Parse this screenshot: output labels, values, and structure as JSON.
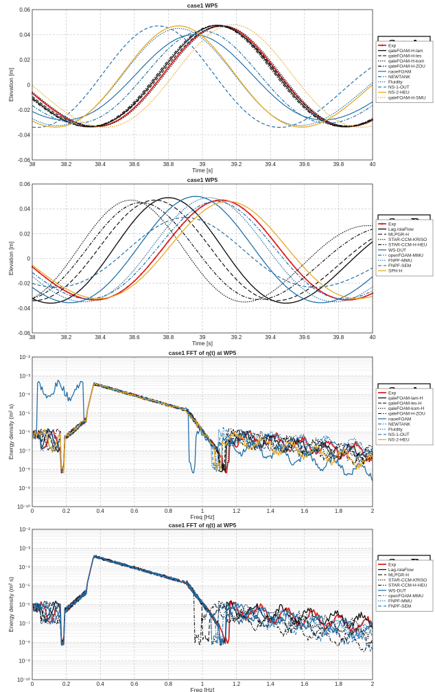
{
  "colors": {
    "red": "#e02020",
    "black": "#111111",
    "blue": "#1f6fa8",
    "gold": "#e8a820",
    "grid": "#bbbbbb"
  },
  "chart_data": [
    {
      "type": "line",
      "title": "case1 WP5",
      "xlabel": "Time [s]",
      "ylabel": "Elevation [m]",
      "xlim": [
        38,
        40
      ],
      "ylim": [
        -0.06,
        0.06
      ],
      "xticks": [
        38,
        38.2,
        38.4,
        38.6,
        38.8,
        39,
        39.2,
        39.4,
        39.6,
        39.8,
        40
      ],
      "yticks": [
        -0.06,
        -0.04,
        -0.02,
        0,
        0.02,
        0.04,
        0.06
      ],
      "log": false,
      "grid": true,
      "legend": "right",
      "set_label": "Set A",
      "series": [
        {
          "name": "Exp",
          "color": "#e02020",
          "dash": "none",
          "marker": true,
          "width": 1.8,
          "amp": 0.047,
          "t0": 39.11,
          "T": 1.56,
          "off": 0.002
        },
        {
          "name": "qaleFOAM-H-lam",
          "color": "#111111",
          "dash": "none",
          "width": 1.4,
          "amp": 0.0475,
          "t0": 39.09,
          "T": 1.58,
          "off": 0.002
        },
        {
          "name": "qaleFOAM-H-les",
          "color": "#111111",
          "dash": "5,2",
          "width": 1.2,
          "amp": 0.0465,
          "t0": 39.1,
          "T": 1.58,
          "off": 0.002
        },
        {
          "name": "qaleFOAM-H-kom",
          "color": "#111111",
          "dash": "1.5,1.5",
          "width": 1.2,
          "amp": 0.047,
          "t0": 39.12,
          "T": 1.56,
          "off": 0.002
        },
        {
          "name": "qaleFOAM-H-ZOU",
          "color": "#111111",
          "dash": "5,2,1.5,2",
          "width": 1.2,
          "amp": 0.0475,
          "t0": 39.08,
          "T": 1.58,
          "off": 0.002
        },
        {
          "name": "naoeFOAM",
          "color": "#1f6fa8",
          "dash": "none",
          "width": 1.2,
          "amp": 0.04,
          "t0": 38.95,
          "T": 1.6,
          "off": 0.0
        },
        {
          "name": "NEWTANK",
          "color": "#1f6fa8",
          "dash": "5,2,1.5,2",
          "width": 1.2,
          "amp": 0.043,
          "t0": 39.0,
          "T": 1.55,
          "off": 0.0
        },
        {
          "name": "Fluidity",
          "color": "#1f6fa8",
          "dash": "1.5,1.5",
          "width": 1.2,
          "amp": 0.045,
          "t0": 38.86,
          "T": 1.5,
          "off": 0.008
        },
        {
          "name": "NS-1-OUT",
          "color": "#1f6fa8",
          "dash": "5,3",
          "width": 1.2,
          "amp": 0.047,
          "t0": 38.74,
          "T": 1.5,
          "off": 0.002
        },
        {
          "name": "NS-2-HEU",
          "color": "#e8a820",
          "dash": "none",
          "width": 1.3,
          "amp": 0.047,
          "t0": 38.86,
          "T": 1.52,
          "off": 0.002
        },
        {
          "name": "qaleFOAM-H-SMU",
          "color": "#e8a820",
          "dash": "1.5,1.5",
          "width": 1.2,
          "amp": 0.048,
          "t0": 39.18,
          "T": 1.58,
          "off": 0.002
        }
      ]
    },
    {
      "type": "line",
      "title": "case1 WP5",
      "xlabel": "Time [s]",
      "ylabel": "Elevation [m]",
      "xlim": [
        38,
        40
      ],
      "ylim": [
        -0.06,
        0.06
      ],
      "xticks": [
        38,
        38.2,
        38.4,
        38.6,
        38.8,
        39,
        39.2,
        39.4,
        39.6,
        39.8,
        40
      ],
      "yticks": [
        -0.06,
        -0.04,
        -0.02,
        0,
        0.02,
        0.04,
        0.06
      ],
      "log": false,
      "grid": true,
      "legend": "right",
      "set_label": "Set B",
      "series": [
        {
          "name": "Exp",
          "color": "#e02020",
          "dash": "none",
          "marker": true,
          "width": 1.8,
          "amp": 0.047,
          "t0": 39.11,
          "T": 1.56,
          "off": 0.002
        },
        {
          "name": "Lag./olaFlow",
          "color": "#111111",
          "dash": "none",
          "width": 1.4,
          "amp": 0.049,
          "t0": 38.8,
          "T": 1.45,
          "off": 0.004
        },
        {
          "name": "MLPGR-H",
          "color": "#111111",
          "dash": "6,3",
          "width": 1.2,
          "amp": 0.047,
          "t0": 38.72,
          "T": 1.5,
          "off": 0.002
        },
        {
          "name": "STAR-CCM-KRISO",
          "color": "#111111",
          "dash": "1.5,1.5",
          "width": 1.2,
          "amp": 0.047,
          "t0": 38.58,
          "T": 1.4,
          "off": 0.0
        },
        {
          "name": "STAR-CCM-H-HEU",
          "color": "#111111",
          "dash": "5,2,1.5,2",
          "width": 1.2,
          "amp": 0.045,
          "t0": 38.64,
          "T": 1.45,
          "off": 0.0
        },
        {
          "name": "WS-DUT",
          "color": "#1f6fa8",
          "dash": "none",
          "width": 1.3,
          "amp": 0.05,
          "t0": 38.96,
          "T": 1.55,
          "off": 0.004
        },
        {
          "name": "openFOAM-MMU",
          "color": "#1f6fa8",
          "dash": "5,2,1.5,2",
          "width": 1.2,
          "amp": 0.046,
          "t0": 39.08,
          "T": 1.58,
          "off": 0.002
        },
        {
          "name": "FNPF-MMU",
          "color": "#1f6fa8",
          "dash": "1.5,1.5",
          "width": 1.2,
          "amp": 0.049,
          "t0": 39.04,
          "T": 1.55,
          "off": 0.004
        },
        {
          "name": "FNPF-SEM",
          "color": "#1f6fa8",
          "dash": "5,3",
          "width": 1.2,
          "amp": 0.033,
          "t0": 38.9,
          "T": 1.6,
          "off": 0.0
        },
        {
          "name": "SPH-H",
          "color": "#e8a820",
          "dash": "none",
          "width": 1.3,
          "amp": 0.046,
          "t0": 39.15,
          "T": 1.6,
          "off": 0.002
        }
      ]
    },
    {
      "type": "line",
      "title": "case1 FFT of η(t) at WP5",
      "xlabel": "Freq [Hz]",
      "ylabel": "Energy density (m² s)",
      "xlim": [
        0,
        2
      ],
      "ylim": [
        1e-10,
        0.01
      ],
      "xticks": [
        0,
        0.2,
        0.4,
        0.6,
        0.8,
        1,
        1.2,
        1.4,
        1.6,
        1.8,
        2
      ],
      "yticks": [
        "10⁻²",
        "10⁻³",
        "10⁻⁴",
        "10⁻⁵",
        "10⁻⁶",
        "10⁻⁷",
        "10⁻⁸",
        "10⁻⁹",
        "10⁻¹⁰"
      ],
      "log": true,
      "grid": true,
      "legend": "right",
      "set_label": "Set A",
      "series": [
        {
          "name": "Exp",
          "color": "#e02020",
          "dash": "none",
          "width": 1.8,
          "seed": 1,
          "dip": 1.12,
          "tail": -7.2
        },
        {
          "name": "qaleFOAM-lam-H",
          "color": "#111111",
          "dash": "none",
          "width": 1.3,
          "seed": 2,
          "dip": 1.1,
          "tail": -7.3
        },
        {
          "name": "qaleFOAM-les-H",
          "color": "#111111",
          "dash": "5,2",
          "width": 1.1,
          "seed": 3,
          "dip": 1.09,
          "tail": -7.3
        },
        {
          "name": "qaleFOAM-kom-H",
          "color": "#111111",
          "dash": "1.5,1.5",
          "width": 1.1,
          "seed": 4,
          "dip": 1.11,
          "tail": -7.2
        },
        {
          "name": "qaleFOAM-H-ZOU",
          "color": "#111111",
          "dash": "5,2,1.5,2",
          "width": 1.1,
          "seed": 5,
          "dip": 1.1,
          "tail": -7.4
        },
        {
          "name": "naoeFOAM",
          "color": "#1f6fa8",
          "dash": "none",
          "width": 1.3,
          "seed": 6,
          "dip": 0.92,
          "tail": -7.8,
          "low": -4.0
        },
        {
          "name": "NEWTANK",
          "color": "#1f6fa8",
          "dash": "5,2,1.5,2",
          "width": 1.1,
          "seed": 7,
          "dip": 1.08,
          "tail": -7.0
        },
        {
          "name": "Fluidity",
          "color": "#1f6fa8",
          "dash": "1.5,1.5",
          "width": 1.1,
          "seed": 8,
          "dip": 1.05,
          "tail": -6.9
        },
        {
          "name": "NS-1-OUT",
          "color": "#1f6fa8",
          "dash": "5,3",
          "width": 1.1,
          "seed": 9,
          "dip": 1.06,
          "tail": -7.2
        },
        {
          "name": "NS-2-HEU",
          "color": "#e8a820",
          "dash": "none",
          "width": 1.3,
          "seed": 10,
          "dip": 1.07,
          "tail": -7.6
        }
      ]
    },
    {
      "type": "line",
      "title": "case1 FFT of η(t) at WP5",
      "xlabel": "Freq [Hz]",
      "ylabel": "Energy density (m² s)",
      "xlim": [
        0,
        2
      ],
      "ylim": [
        1e-10,
        0.01
      ],
      "xticks": [
        0,
        0.2,
        0.4,
        0.6,
        0.8,
        1,
        1.2,
        1.4,
        1.6,
        1.8,
        2
      ],
      "yticks": [
        "10⁻²",
        "10⁻³",
        "10⁻⁴",
        "10⁻⁵",
        "10⁻⁶",
        "10⁻⁷",
        "10⁻⁸",
        "10⁻⁹",
        "10⁻¹⁰"
      ],
      "log": true,
      "grid": true,
      "legend": "right",
      "set_label": "Set B",
      "series": [
        {
          "name": "Exp",
          "color": "#e02020",
          "dash": "none",
          "width": 1.8,
          "seed": 11,
          "dip": 1.12,
          "tail": -7.2
        },
        {
          "name": "Lag./olaFlow",
          "color": "#111111",
          "dash": "none",
          "width": 1.3,
          "seed": 12,
          "dip": 1.1,
          "tail": -7.0
        },
        {
          "name": "MLPGR-H",
          "color": "#111111",
          "dash": "6,3",
          "width": 1.1,
          "seed": 13,
          "dip": 1.0,
          "tail": -7.6
        },
        {
          "name": "STAR-CCM-KRISO",
          "color": "#111111",
          "dash": "1.5,1.5",
          "width": 1.1,
          "seed": 14,
          "dip": 1.05,
          "tail": -7.3
        },
        {
          "name": "STAR-CCM-H-HEU",
          "color": "#111111",
          "dash": "5,2,1.5,2",
          "width": 1.1,
          "seed": 15,
          "dip": 0.95,
          "tail": -7.8
        },
        {
          "name": "WS-DUT",
          "color": "#1f6fa8",
          "dash": "none",
          "width": 1.3,
          "seed": 16,
          "dip": 1.1,
          "tail": -7.4
        },
        {
          "name": "openFOAM-MMU",
          "color": "#1f6fa8",
          "dash": "5,2,1.5,2",
          "width": 1.1,
          "seed": 17,
          "dip": 1.08,
          "tail": -7.5
        },
        {
          "name": "FNPF-MMU",
          "color": "#1f6fa8",
          "dash": "1.5,1.5",
          "width": 1.1,
          "seed": 18,
          "dip": 1.1,
          "tail": -7.5
        },
        {
          "name": "FNPF-SEM",
          "color": "#1f6fa8",
          "dash": "5,3",
          "width": 1.1,
          "seed": 19,
          "dip": 1.05,
          "tail": -7.9
        }
      ]
    }
  ]
}
